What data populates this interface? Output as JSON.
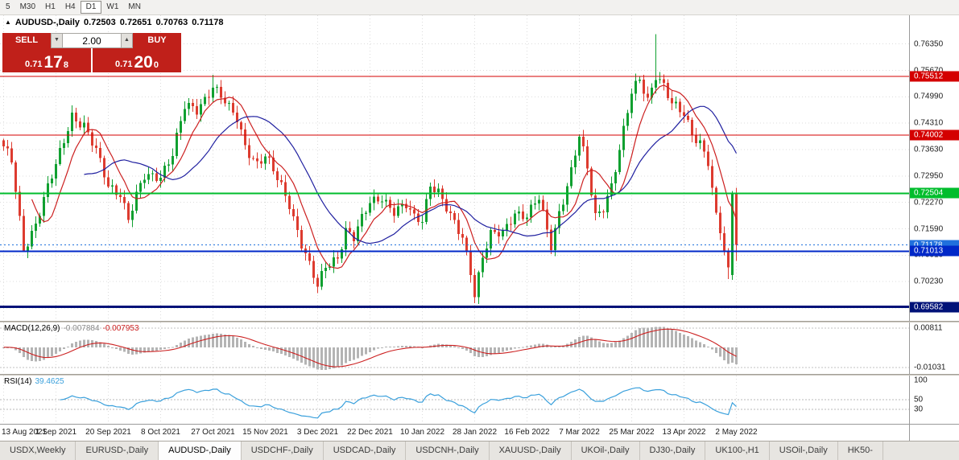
{
  "colors": {
    "up": "#10a030",
    "down": "#dd3b2f",
    "ma_fast": "#cc2020",
    "ma_slow": "#2020a0",
    "bid": "#2070dd",
    "macd_hist": "#b4b4b4",
    "macd_signal": "#cc2020",
    "rsi_line": "#3aa0dc",
    "grid": "#dcdcdc"
  },
  "toolbar": {
    "timeframes": [
      "5",
      "M30",
      "H1",
      "H4",
      "D1",
      "W1",
      "MN"
    ],
    "active": "D1"
  },
  "chart_header": {
    "collapse_icon": "▲",
    "symbol_label": "AUDUSD-,Daily",
    "open": "0.72503",
    "high": "0.72651",
    "low": "0.70763",
    "close": "0.71178"
  },
  "trade_panel": {
    "sell_label": "SELL",
    "buy_label": "BUY",
    "volume": "2.00",
    "volume_down_icon": "▼",
    "volume_up_icon": "▲",
    "sell_price": {
      "big_prefix": "0.71",
      "big": "17",
      "sup": "8"
    },
    "buy_price": {
      "big_prefix": "0.71",
      "big": "20",
      "sup": "0"
    }
  },
  "price_scale": {
    "ticks": [
      "0.76350",
      "0.75670",
      "0.74990",
      "0.74310",
      "0.73630",
      "0.72950",
      "0.72270",
      "0.71590",
      "0.70910",
      "0.70230",
      "0.69550"
    ],
    "badges": [
      {
        "value": "0.75512",
        "color": "#d40000"
      },
      {
        "value": "0.74002",
        "color": "#d40000"
      },
      {
        "value": "0.72504",
        "color": "#00bd2c"
      },
      {
        "value": "0.71178",
        "color": "#2070dd"
      },
      {
        "value": "0.71013",
        "color": "#0028c8"
      },
      {
        "value": "0.69582",
        "color": "#001278"
      }
    ]
  },
  "macd": {
    "label": "MACD(12,26,9)",
    "value_main": "-0.007884",
    "value_signal": "-0.007953",
    "scale_top": "0.00811",
    "scale_bottom": "-0.01031"
  },
  "rsi": {
    "label": "RSI(14)",
    "value": "39.4625",
    "scale_top": "100",
    "scale_mid": "50",
    "scale_low": "30"
  },
  "date_axis": [
    "13 Aug 2021",
    "1 Sep 2021",
    "20 Sep 2021",
    "8 Oct 2021",
    "27 Oct 2021",
    "15 Nov 2021",
    "3 Dec 2021",
    "22 Dec 2021",
    "10 Jan 2022",
    "28 Jan 2022",
    "16 Feb 2022",
    "7 Mar 2022",
    "25 Mar 2022",
    "13 Apr 2022",
    "2 May 2022"
  ],
  "tabs": [
    "USDX,Weekly",
    "EURUSD-,Daily",
    "AUDUSD-,Daily",
    "USDCHF-,Daily",
    "USDCAD-,Daily",
    "USDCNH-,Daily",
    "XAUUSD-,Daily",
    "UKOil-,Daily",
    "DJ30-,Daily",
    "UK100-,H1",
    "USOil-,Daily",
    "HK50-"
  ],
  "active_tab": "AUDUSD-,Daily",
  "chart_data": {
    "type": "candlestick",
    "symbol": "AUDUSD-",
    "timeframe": "Daily",
    "last_candle": {
      "open": 0.72503,
      "high": 0.72651,
      "low": 0.70763,
      "close": 0.71178
    },
    "price_max": 0.7709,
    "price_min": 0.6922,
    "candle_count": 183,
    "label_step": 13,
    "anchors": [
      [
        0,
        0.7365
      ],
      [
        2,
        0.733
      ],
      [
        5,
        0.7108
      ],
      [
        8,
        0.7175
      ],
      [
        13,
        0.732
      ],
      [
        17,
        0.7455
      ],
      [
        20,
        0.7425
      ],
      [
        23,
        0.7355
      ],
      [
        26,
        0.727
      ],
      [
        29,
        0.7255
      ],
      [
        31,
        0.7185
      ],
      [
        33,
        0.724
      ],
      [
        35,
        0.729
      ],
      [
        39,
        0.73
      ],
      [
        42,
        0.7355
      ],
      [
        45,
        0.747
      ],
      [
        48,
        0.7465
      ],
      [
        52,
        0.753
      ],
      [
        54,
        0.75
      ],
      [
        56,
        0.7465
      ],
      [
        58,
        0.744
      ],
      [
        60,
        0.7375
      ],
      [
        63,
        0.733
      ],
      [
        65,
        0.7345
      ],
      [
        68,
        0.7285
      ],
      [
        71,
        0.7225
      ],
      [
        74,
        0.7125
      ],
      [
        76,
        0.7065
      ],
      [
        78,
        0.7005
      ],
      [
        80,
        0.706
      ],
      [
        83,
        0.709
      ],
      [
        85,
        0.716
      ],
      [
        87,
        0.7135
      ],
      [
        89,
        0.718
      ],
      [
        91,
        0.7225
      ],
      [
        94,
        0.7245
      ],
      [
        97,
        0.7205
      ],
      [
        100,
        0.7215
      ],
      [
        102,
        0.7185
      ],
      [
        104,
        0.7185
      ],
      [
        106,
        0.728
      ],
      [
        108,
        0.7255
      ],
      [
        111,
        0.7185
      ],
      [
        114,
        0.7135
      ],
      [
        116,
        0.7055
      ],
      [
        117,
        0.6995
      ],
      [
        119,
        0.709
      ],
      [
        121,
        0.714
      ],
      [
        124,
        0.7145
      ],
      [
        127,
        0.7205
      ],
      [
        130,
        0.7195
      ],
      [
        133,
        0.7235
      ],
      [
        135,
        0.715
      ],
      [
        136,
        0.7115
      ],
      [
        138,
        0.7205
      ],
      [
        141,
        0.731
      ],
      [
        143,
        0.7395
      ],
      [
        145,
        0.731
      ],
      [
        147,
        0.719
      ],
      [
        149,
        0.722
      ],
      [
        151,
        0.7275
      ],
      [
        153,
        0.736
      ],
      [
        156,
        0.7505
      ],
      [
        158,
        0.7545
      ],
      [
        160,
        0.7495
      ],
      [
        162,
        0.756
      ],
      [
        164,
        0.7525
      ],
      [
        166,
        0.7475
      ],
      [
        169,
        0.7455
      ],
      [
        171,
        0.741
      ],
      [
        173,
        0.7385
      ],
      [
        175,
        0.733
      ],
      [
        176,
        0.7255
      ],
      [
        177,
        0.7185
      ],
      [
        178,
        0.715
      ],
      [
        179,
        0.71
      ],
      [
        180,
        0.7048
      ],
      [
        181,
        0.7248
      ],
      [
        182,
        0.71178
      ]
    ],
    "candle_overrides": [
      {
        "i": 5,
        "l": 0.7105
      },
      {
        "i": 52,
        "h": 0.7556
      },
      {
        "i": 78,
        "l": 0.6993
      },
      {
        "i": 117,
        "l": 0.6968
      },
      {
        "i": 162,
        "h": 0.766
      },
      {
        "i": 180,
        "l": 0.703
      },
      {
        "i": 181,
        "o": 0.704,
        "h": 0.7256,
        "l": 0.7028,
        "c": 0.7248
      },
      {
        "i": 182,
        "o": 0.72503,
        "h": 0.72651,
        "l": 0.70763,
        "c": 0.71178
      }
    ],
    "moving_averages": [
      {
        "period": 8,
        "color": "#cc2020"
      },
      {
        "period": 21,
        "color": "#2020a0"
      }
    ],
    "levels": [
      {
        "price": 0.75512,
        "color": "#d40000",
        "width": 1
      },
      {
        "price": 0.74002,
        "color": "#d40000",
        "width": 1
      },
      {
        "price": 0.72504,
        "color": "#00bd2c",
        "width": 2
      },
      {
        "price": 0.71013,
        "color": "#0028c8",
        "width": 2
      },
      {
        "price": 0.69582,
        "color": "#001278",
        "width": 3
      }
    ],
    "bid_price": 0.71178,
    "macd_params": [
      12,
      26,
      9
    ],
    "rsi_period": 14
  }
}
